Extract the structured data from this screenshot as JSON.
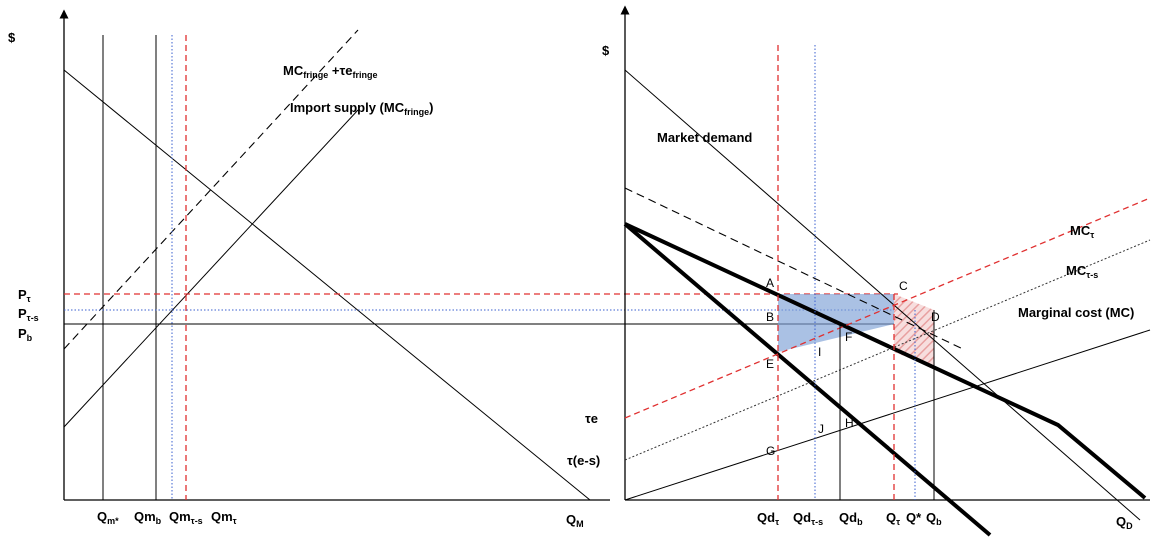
{
  "left_panel": {
    "y_axis_label": "$",
    "x_axis_label": "Q_M",
    "curve_labels": {
      "mc_fringe_tax": {
        "base": "MC",
        "sub1": "fringe",
        "mid": " +τe",
        "sub2": "fringe"
      },
      "import_supply": {
        "text": "Import supply  (MC",
        "sub": "fringe",
        "tail": ")"
      }
    },
    "price_labels": [
      {
        "base": "P",
        "sub": "τ"
      },
      {
        "base": "P",
        "sub": "τ-s"
      },
      {
        "base": "P",
        "sub": "b"
      }
    ],
    "quantity_labels": [
      {
        "base": "Q",
        "sub": "m*"
      },
      {
        "base": "Qm",
        "sub": "b"
      },
      {
        "base": "Qm",
        "sub": "τ-s"
      },
      {
        "base": "Qm",
        "sub": "τ"
      }
    ]
  },
  "right_panel": {
    "y_axis_label": "$",
    "x_axis_label": "Q_D",
    "curve_labels": {
      "market_demand": "Market demand",
      "mc_tau": {
        "base": "MC",
        "sub": "τ"
      },
      "mc_tau_s": {
        "base": "MC",
        "sub": "τ-s"
      },
      "marginal_cost": "Marginal cost (MC)"
    },
    "intercept_labels": [
      "τe",
      "τ(e-s)"
    ],
    "point_labels": [
      "A",
      "B",
      "C",
      "D",
      "E",
      "F",
      "G",
      "H",
      "I",
      "J"
    ],
    "quantity_labels": [
      {
        "base": "Qd",
        "sub": "τ"
      },
      {
        "base": "Qd",
        "sub": "τ-s"
      },
      {
        "base": "Qd",
        "sub": "b"
      },
      {
        "base": "Q",
        "sub": "τ"
      },
      {
        "base": "Q*",
        "sub": ""
      },
      {
        "base": "Q",
        "sub": "b"
      }
    ]
  },
  "colors": {
    "tax_lines": "#e03030",
    "subsidy_lines": "#3a5fcf",
    "shaded_area": "#7c9fd6",
    "hatched_area": "#e8a0a0"
  }
}
